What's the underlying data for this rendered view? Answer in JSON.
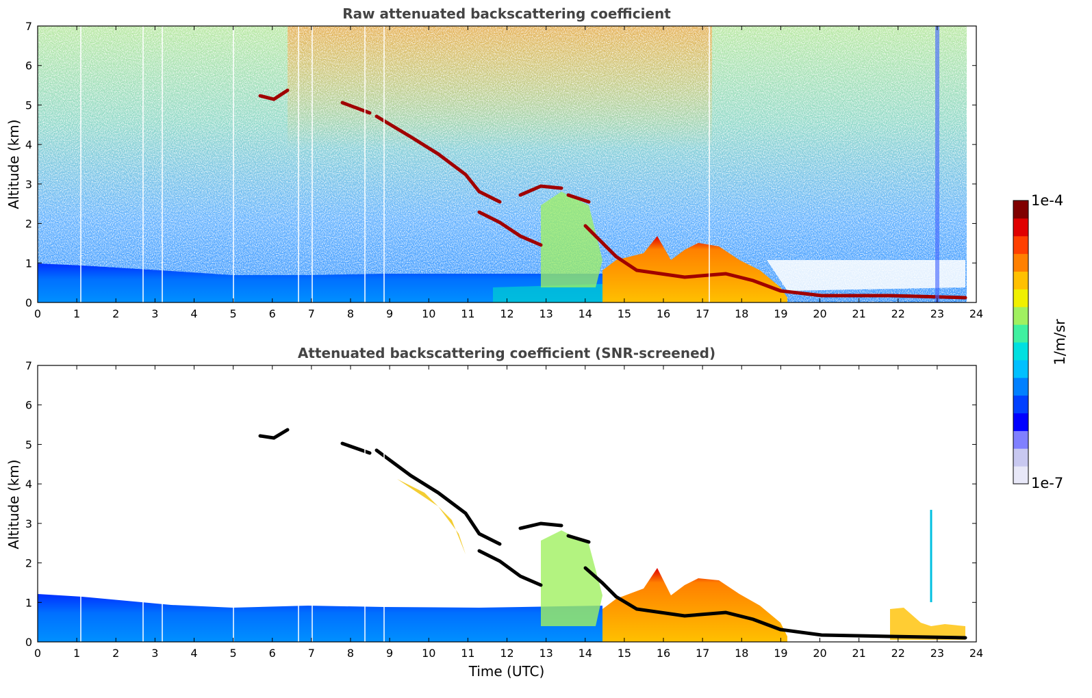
{
  "chart_data": [
    {
      "type": "heatmap",
      "title": "Raw attenuated backscattering coefficient",
      "xlabel": "",
      "ylabel": "Altitude (km)",
      "xlim": [
        0,
        24
      ],
      "ylim": [
        0,
        7
      ],
      "xticks": [
        "0",
        "1",
        "2",
        "3",
        "4",
        "5",
        "6",
        "7",
        "8",
        "9",
        "10",
        "11",
        "12",
        "13",
        "14",
        "15",
        "16",
        "17",
        "18",
        "19",
        "20",
        "21",
        "22",
        "23",
        "24"
      ],
      "yticks": [
        "0",
        "1",
        "2",
        "3",
        "4",
        "5",
        "6",
        "7"
      ],
      "features": [
        {
          "name": "boundary layer aerosol",
          "x": [
            0,
            11.5
          ],
          "top_km": [
            1.0,
            0.8
          ]
        },
        {
          "name": "descending cloud layer",
          "x": [
            5.7,
            19.2
          ],
          "alt_km": [
            5.2,
            0.3
          ]
        },
        {
          "name": "noise background",
          "x": [
            0,
            24
          ],
          "alt_km": [
            1,
            7
          ]
        }
      ]
    },
    {
      "type": "heatmap",
      "title": "Attenuated backscattering coefficient (SNR-screened)",
      "xlabel": "Time (UTC)",
      "ylabel": "Altitude (km)",
      "xlim": [
        0,
        24
      ],
      "ylim": [
        0,
        7
      ],
      "xticks": [
        "0",
        "1",
        "2",
        "3",
        "4",
        "5",
        "6",
        "7",
        "8",
        "9",
        "10",
        "11",
        "12",
        "13",
        "14",
        "15",
        "16",
        "17",
        "18",
        "19",
        "20",
        "21",
        "22",
        "23",
        "24"
      ],
      "yticks": [
        "0",
        "1",
        "2",
        "3",
        "4",
        "5",
        "6",
        "7"
      ]
    }
  ],
  "colorbar": {
    "max_label": "1e-4",
    "min_label": "1e-7",
    "unit_label": "1/m/sr",
    "colors": [
      "#e8e8f8",
      "#c8c8f0",
      "#8080ff",
      "#0000ff",
      "#0040ff",
      "#0080ff",
      "#00c0ff",
      "#00e0e0",
      "#40f0a0",
      "#a0f060",
      "#f0f000",
      "#ffc000",
      "#ff8000",
      "#ff4000",
      "#e00000",
      "#800000"
    ]
  }
}
